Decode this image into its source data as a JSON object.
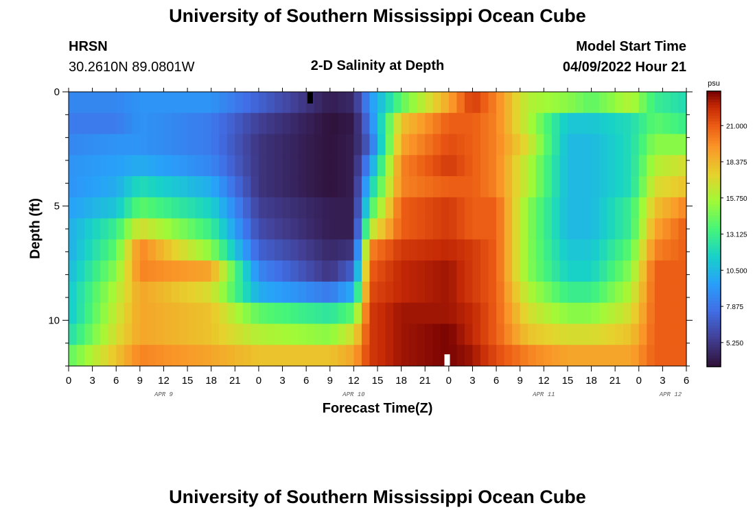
{
  "chart_data": {
    "type": "heatmap",
    "title": "University of Southern Mississippi Ocean Cube",
    "subtitle": "2-D Salinity at Depth",
    "station": "HRSN",
    "coordinates": "30.2610N  89.0801W",
    "start_label": "Model Start Time",
    "start_value": "04/09/2022 Hour 21",
    "xlabel": "Forecast Time(Z)",
    "ylabel": "Depth (ft)",
    "x_ticks": [
      "0",
      "3",
      "6",
      "9",
      "12",
      "15",
      "18",
      "21",
      "0",
      "3",
      "6",
      "9",
      "12",
      "15",
      "18",
      "21",
      "0",
      "3",
      "6",
      "9",
      "12",
      "15",
      "18",
      "21",
      "0",
      "3",
      "6"
    ],
    "date_labels": [
      "APR 9",
      "APR 10",
      "APR 11",
      "APR 12"
    ],
    "y_ticks": [
      "0",
      "5",
      "10"
    ],
    "ylim": [
      0,
      12
    ],
    "time_hours": [
      0,
      78
    ],
    "colorbar": {
      "unit": "psu",
      "ticks": [
        "21.000",
        "18.375",
        "15.750",
        "13.125",
        "10.500",
        "7.875",
        "5.250"
      ],
      "range": [
        3.5,
        23.5
      ]
    },
    "depths_ft": [
      0,
      1,
      2,
      3,
      4,
      5,
      6,
      7,
      8,
      9,
      10,
      11,
      12
    ],
    "keyframes": {
      "hours": [
        0,
        6,
        9,
        18,
        24,
        33,
        36,
        38,
        42,
        48,
        51,
        54,
        58,
        63,
        66,
        71,
        74,
        78
      ],
      "rows": [
        [
          8.5,
          8.5,
          9,
          9,
          7,
          4,
          4.5,
          9,
          14,
          19,
          22,
          20,
          16,
          15,
          14,
          16,
          13,
          12
        ],
        [
          8,
          8,
          9,
          8,
          5.5,
          3.5,
          3.8,
          8,
          18,
          21,
          21,
          20,
          16,
          11,
          11,
          12,
          14,
          13
        ],
        [
          8.5,
          9,
          9,
          8,
          5,
          3.5,
          4,
          7,
          19,
          21.5,
          21,
          20,
          17,
          10.5,
          10.5,
          12,
          15,
          15
        ],
        [
          9,
          9.5,
          10,
          8.5,
          5,
          3.5,
          4,
          9,
          20,
          22,
          21,
          20,
          16,
          10.5,
          10.5,
          12,
          16,
          17
        ],
        [
          9,
          10,
          12,
          10,
          5,
          3.5,
          4,
          11,
          20,
          21,
          21,
          20,
          16,
          10.5,
          10.5,
          12,
          17,
          18
        ],
        [
          9.5,
          11,
          14,
          11.5,
          5.5,
          4,
          4,
          13,
          21,
          22,
          21,
          21,
          15,
          10.5,
          10.5,
          13,
          18,
          20
        ],
        [
          10,
          13,
          17,
          13,
          6,
          4,
          4,
          16,
          21,
          22,
          21,
          21,
          15,
          10.5,
          10.5,
          13,
          19,
          21
        ],
        [
          10,
          14,
          20,
          15,
          7,
          4.5,
          5,
          20,
          22,
          22.5,
          22,
          21,
          15,
          11,
          11,
          14,
          20,
          21
        ],
        [
          10.5,
          15,
          20,
          19,
          8.5,
          5,
          7,
          21,
          22.5,
          23,
          22,
          21,
          15,
          11.5,
          11.5,
          15,
          21,
          21
        ],
        [
          11,
          16,
          19,
          17,
          10,
          8,
          10,
          21.5,
          22.5,
          23,
          22,
          21,
          16,
          13,
          13,
          16,
          21,
          21
        ],
        [
          11,
          16.5,
          19,
          18,
          14,
          12.5,
          14,
          22,
          23,
          23,
          22.5,
          21,
          17,
          15,
          15,
          17,
          21,
          21
        ],
        [
          12,
          17,
          19,
          18,
          16,
          15,
          17,
          22,
          23,
          23.5,
          22.5,
          21,
          18,
          17,
          17,
          18,
          21,
          21
        ],
        [
          14,
          18,
          20,
          19,
          18,
          18,
          19,
          22,
          23,
          23.5,
          23,
          21.5,
          20,
          19,
          19,
          19,
          21,
          21
        ]
      ]
    },
    "markers": [
      {
        "hour": 30.5,
        "depth": 0,
        "color": "#000000",
        "label": "surface-marker"
      },
      {
        "hour": 47.8,
        "depth": 12,
        "color": "#ffffff",
        "label": "bottom-marker"
      }
    ]
  },
  "repeat_title": "University of Southern Mississippi Ocean Cube"
}
